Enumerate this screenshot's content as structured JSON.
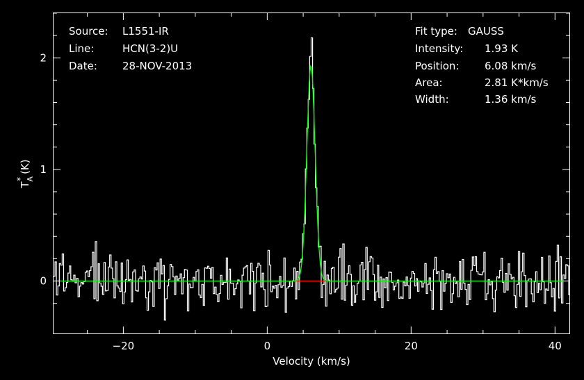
{
  "header": {
    "source_label": "Source:",
    "source_value": "L1551-IR",
    "line_label": "Line:",
    "line_value": "HCN(3-2)U",
    "date_label": "Date:",
    "date_value": "28-NOV-2013"
  },
  "fit": {
    "type_label": "Fit type:",
    "type_value": "GAUSS",
    "intensity_label": "Intensity:",
    "intensity_value": "1.93 K",
    "position_label": "Position:",
    "position_value": "6.08 km/s",
    "area_label": "Area:",
    "area_value": "2.81 K*km/s",
    "width_label": "Width:",
    "width_value": "1.36 km/s"
  },
  "chart_data": {
    "type": "line",
    "title": "",
    "xlabel": "Velocity (km/s)",
    "ylabel": "T*A (K)",
    "ylabel_main": "T",
    "ylabel_sup": "*",
    "ylabel_sub": "A",
    "ylabel_unit": "(K)",
    "xlim": [
      -29.7,
      42.0
    ],
    "ylim": [
      -0.47,
      2.4
    ],
    "x_ticks": [
      -20,
      0,
      20,
      40
    ],
    "x_tick_labels": [
      "−20",
      "0",
      "20",
      "40"
    ],
    "y_ticks": [
      0,
      1,
      2
    ],
    "y_tick_labels": [
      "0",
      "1",
      "2"
    ],
    "grid": false,
    "colors": {
      "spectrum": "#ffffff",
      "fit": "#00ff00",
      "baseline": "#ff0000",
      "background": "#000000",
      "text": "#ffffff"
    },
    "series": [
      {
        "style": "histogram",
        "x_start": -29.7,
        "x_step": 0.2,
        "noise_sigma": 0.13,
        "peak": 2.18
      },
      {
        "type": "gaussian",
        "amplitude": 1.93,
        "center": 6.08,
        "fwhm": 1.36
      },
      {
        "type": "baseline",
        "x": [
          2.8,
          8.9
        ],
        "y": 0
      }
    ]
  }
}
